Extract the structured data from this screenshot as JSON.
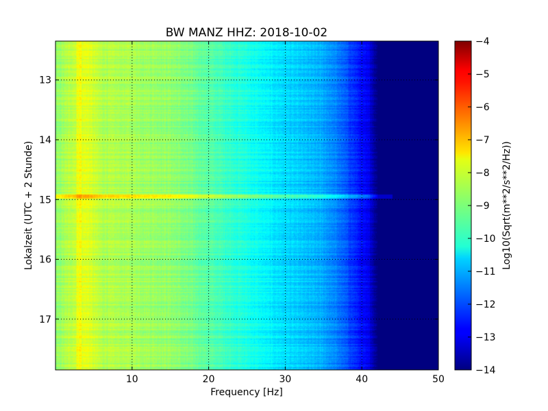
{
  "chart_data": {
    "type": "heatmap",
    "title": "BW MANZ HHZ: 2018-10-02",
    "xlabel": "Frequency [Hz]",
    "ylabel": "Lokalzeit (UTC + 2 Stunde)",
    "colorbar_label": "Log10(Sqrt(m**2/s**2/Hz))",
    "xlim": [
      0,
      50
    ],
    "ylim": [
      12.35,
      17.85
    ],
    "y_inverted": true,
    "clim": [
      -14,
      -4
    ],
    "colormap": "jet",
    "grid": "dotted",
    "x_ticks": [
      10,
      20,
      30,
      40,
      50
    ],
    "y_ticks": [
      13,
      14,
      15,
      16,
      17
    ],
    "colorbar_ticks": [
      -4,
      -5,
      -6,
      -7,
      -8,
      -9,
      -10,
      -11,
      -12,
      -13,
      -14
    ],
    "profile": {
      "description_points_freq_hz": [
        0,
        2,
        4,
        6,
        10,
        15,
        20,
        25,
        28,
        32,
        35,
        37,
        39,
        40,
        41,
        42,
        45,
        50
      ],
      "log10_values": [
        -8.9,
        -8.4,
        -8.0,
        -8.5,
        -8.6,
        -8.8,
        -9.4,
        -10.0,
        -10.4,
        -10.8,
        -11.1,
        -11.6,
        -12.3,
        -12.7,
        -13.0,
        -14.0,
        -14.0,
        -14.0
      ]
    },
    "event": {
      "time": 14.95,
      "note_level_increase": 1.2
    }
  }
}
